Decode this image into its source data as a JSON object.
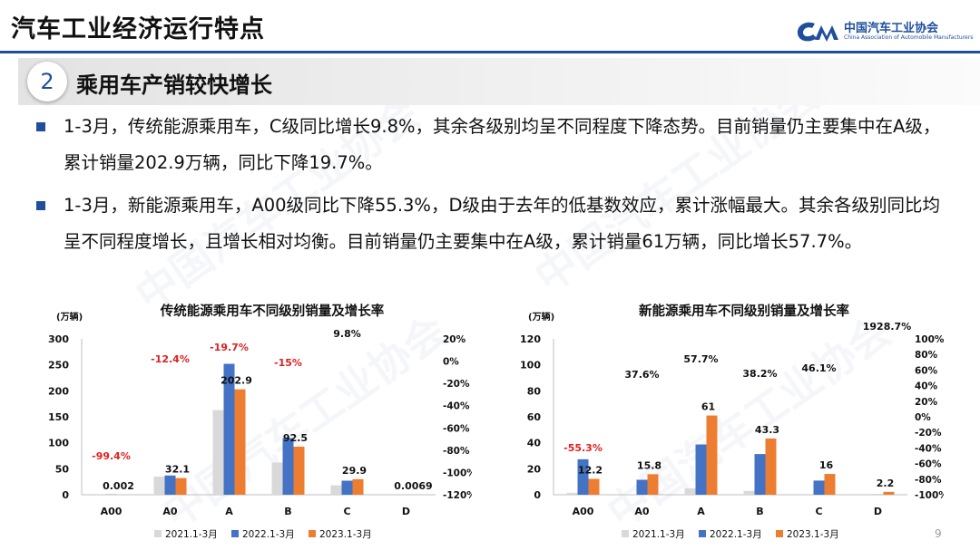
{
  "header": {
    "title": "汽车工业经济运行特点",
    "logo_cn": "中国汽车工业协会",
    "logo_en": "China Association of Automobile Manufacturers"
  },
  "section": {
    "number": "2",
    "title": "乘用车产销较快增长"
  },
  "bullets": [
    {
      "text": "1-3月，传统能源乘用车，C级同比增长9.8%，其余各级别均呈不同程度下降态势。目前销量仍主要集中在A级，累计销量202.9万辆，同比下降19.7%。"
    },
    {
      "text": "1-3月，新能源乘用车，A00级同比下降55.3%，D级由于去年的低基数效应，累计涨幅最大。其余各级别同比均呈不同程度增长，且增长相对均衡。目前销量仍主要集中在A级，累计销量61万辆，同比增长57.7%。"
    }
  ],
  "colors": {
    "s2021": "#d9d9d9",
    "s2022": "#4472c4",
    "s2023": "#ed7d31",
    "negative": "#e02020",
    "positive": "#111111",
    "accent": "#1f4e9c"
  },
  "page_number": "9",
  "chart_data": [
    {
      "type": "bar",
      "title": "传统能源乘用车不同级别销量及增长率",
      "unit_label": "(万辆)",
      "categories": [
        "A00",
        "A0",
        "A",
        "B",
        "C",
        "D"
      ],
      "series": [
        {
          "name": "2021.1-3月",
          "values": [
            0.5,
            35,
            163,
            62,
            18,
            0
          ]
        },
        {
          "name": "2022.1-3月",
          "values": [
            0.3,
            37,
            252,
            109,
            27,
            0.01
          ]
        },
        {
          "name": "2023.1-3月",
          "values": [
            0.002,
            32.1,
            202.9,
            92.5,
            29.9,
            0.0069
          ]
        }
      ],
      "value_labels": [
        "0.002",
        "32.1",
        "202.9",
        "92.5",
        "29.9",
        "0.0069"
      ],
      "growth_labels": [
        "-99.4%",
        "-12.4%",
        "-19.7%",
        "-15%",
        "9.8%",
        ""
      ],
      "growth_negative": [
        true,
        true,
        true,
        true,
        false,
        false
      ],
      "y_ticks": [
        "0",
        "50",
        "100",
        "150",
        "200",
        "250",
        "300"
      ],
      "ylim": [
        0,
        300
      ],
      "y2_ticks": [
        "-120%",
        "-100%",
        "-80%",
        "-60%",
        "-40%",
        "-20%",
        "0%",
        "20%"
      ]
    },
    {
      "type": "bar",
      "title": "新能源乘用车不同级别销量及增长率",
      "unit_label": "(万辆)",
      "categories": [
        "A00",
        "A0",
        "A",
        "B",
        "C",
        "D"
      ],
      "series": [
        {
          "name": "2021.1-3月",
          "values": [
            1.5,
            0.5,
            5,
            3,
            0,
            0
          ]
        },
        {
          "name": "2022.1-3月",
          "values": [
            27.3,
            11.5,
            38.7,
            31.3,
            10.9,
            0.1
          ]
        },
        {
          "name": "2023.1-3月",
          "values": [
            12.2,
            15.8,
            61,
            43.3,
            16,
            2.2
          ]
        }
      ],
      "value_labels": [
        "12.2",
        "15.8",
        "61",
        "43.3",
        "16",
        "2.2"
      ],
      "growth_labels": [
        "-55.3%",
        "37.6%",
        "57.7%",
        "38.2%",
        "46.1%",
        "1928.7%"
      ],
      "growth_negative": [
        true,
        false,
        false,
        false,
        false,
        false
      ],
      "y_ticks": [
        "0",
        "20",
        "40",
        "60",
        "80",
        "100",
        "120"
      ],
      "ylim": [
        0,
        120
      ],
      "y2_ticks": [
        "-100%",
        "-80%",
        "-60%",
        "-40%",
        "-20%",
        "0%",
        "20%",
        "40%",
        "60%",
        "80%",
        "100%"
      ]
    }
  ]
}
